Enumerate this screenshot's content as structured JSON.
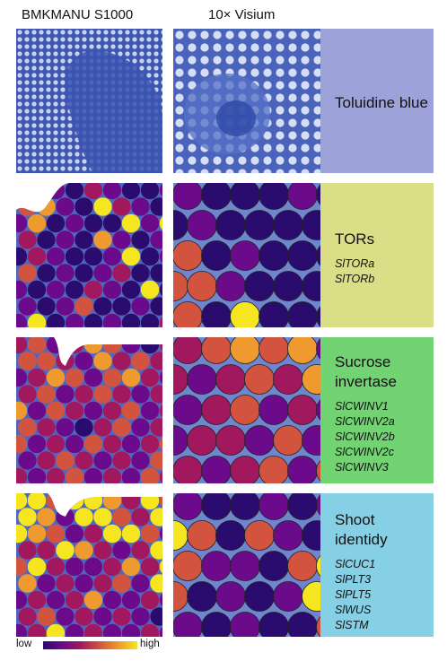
{
  "headers": {
    "left": "BMKMANU S1000",
    "right": "10× Visium"
  },
  "rows": [
    {
      "title": "Toluidine blue",
      "genes": [],
      "color": "#9da3d8"
    },
    {
      "title": "TORs",
      "genes": [
        "SlTORa",
        "SlTORb"
      ],
      "color": "#dade86"
    },
    {
      "title": "Sucrose invertase",
      "genes": [
        "SlCWINV1",
        "SlCWINV2a",
        "SlCWINV2b",
        "SlCWINV2c",
        "SlCWINV3"
      ],
      "color": "#72d372"
    },
    {
      "title": "Shoot identidy",
      "genes": [
        "SlCUC1",
        "SlPLT3",
        "SlPLT5",
        "SlWUS",
        "SlSTM"
      ],
      "color": "#86d0e6"
    }
  ],
  "legend": {
    "low": "low",
    "high": "high",
    "colors": [
      "#2a0b6e",
      "#6b0a8a",
      "#a1185f",
      "#d3543e",
      "#ee9a2f",
      "#f5e61f"
    ]
  },
  "heat_levels": {
    "tors_s1000": [
      0,
      1,
      1,
      0,
      2,
      1,
      0,
      0,
      1,
      3,
      4,
      1,
      0,
      5,
      2,
      1,
      0,
      1,
      4,
      0,
      1,
      0,
      0,
      5,
      1,
      5,
      2,
      0,
      1,
      0,
      4,
      1,
      0,
      1,
      0,
      2,
      1,
      0,
      0,
      1,
      5,
      0,
      1,
      3,
      0,
      1,
      0,
      1,
      2,
      0,
      0,
      1,
      0,
      1,
      0,
      2,
      1,
      0,
      5,
      0,
      1,
      0,
      1,
      3,
      0,
      0,
      1,
      0,
      1,
      5,
      0,
      1,
      0,
      1,
      0,
      0,
      2,
      1,
      0,
      0
    ],
    "tors_visium": [
      1,
      0,
      0,
      0,
      1,
      0,
      0,
      1,
      0,
      0,
      0,
      0,
      3,
      0,
      1,
      0,
      0,
      0,
      3,
      3,
      1,
      0,
      0,
      0,
      3,
      0,
      5,
      0,
      0,
      0,
      0,
      1,
      0,
      0,
      0
    ],
    "inv_s1000": [
      2,
      3,
      1,
      2,
      4,
      3,
      1,
      0,
      2,
      3,
      3,
      2,
      1,
      4,
      2,
      3,
      2,
      1,
      2,
      4,
      3,
      1,
      3,
      4,
      2,
      1,
      2,
      3,
      1,
      2,
      3,
      2,
      1,
      2,
      4,
      1,
      3,
      2,
      1,
      2,
      3,
      1,
      2,
      3,
      2,
      1,
      0,
      2,
      3,
      1,
      2,
      3,
      1,
      2,
      1,
      3,
      2,
      1,
      2,
      3,
      1,
      2,
      3,
      2,
      1,
      2,
      1,
      3,
      2,
      1,
      2,
      3,
      1,
      2,
      1,
      3,
      2,
      1,
      2,
      1
    ],
    "inv_visium": [
      2,
      3,
      4,
      3,
      4,
      1,
      2,
      1,
      2,
      3,
      2,
      4,
      1,
      2,
      3,
      1,
      2,
      1,
      1,
      2,
      2,
      1,
      3,
      1,
      2,
      1,
      2,
      3,
      1,
      3,
      2,
      2,
      1,
      2,
      1
    ],
    "shoot_s1000": [
      5,
      5,
      3,
      5,
      5,
      4,
      2,
      5,
      3,
      5,
      4,
      1,
      5,
      5,
      3,
      2,
      5,
      5,
      4,
      3,
      1,
      2,
      5,
      5,
      3,
      1,
      2,
      2,
      5,
      4,
      2,
      1,
      2,
      5,
      3,
      5,
      2,
      1,
      1,
      2,
      4,
      2,
      5,
      4,
      1,
      2,
      1,
      2,
      3,
      1,
      5,
      1,
      2,
      1,
      2,
      4,
      1,
      1,
      2,
      1,
      2,
      3,
      1,
      2,
      1,
      2,
      1,
      0,
      1,
      2,
      5,
      1,
      2,
      1,
      1,
      2,
      1,
      0,
      1,
      2
    ],
    "shoot_visium": [
      1,
      0,
      0,
      1,
      0,
      1,
      5,
      3,
      0,
      3,
      1,
      0,
      3,
      1,
      1,
      0,
      3,
      5,
      3,
      0,
      1,
      0,
      1,
      5,
      1,
      0,
      1,
      0,
      0,
      3,
      1,
      0,
      0,
      1,
      0
    ]
  }
}
